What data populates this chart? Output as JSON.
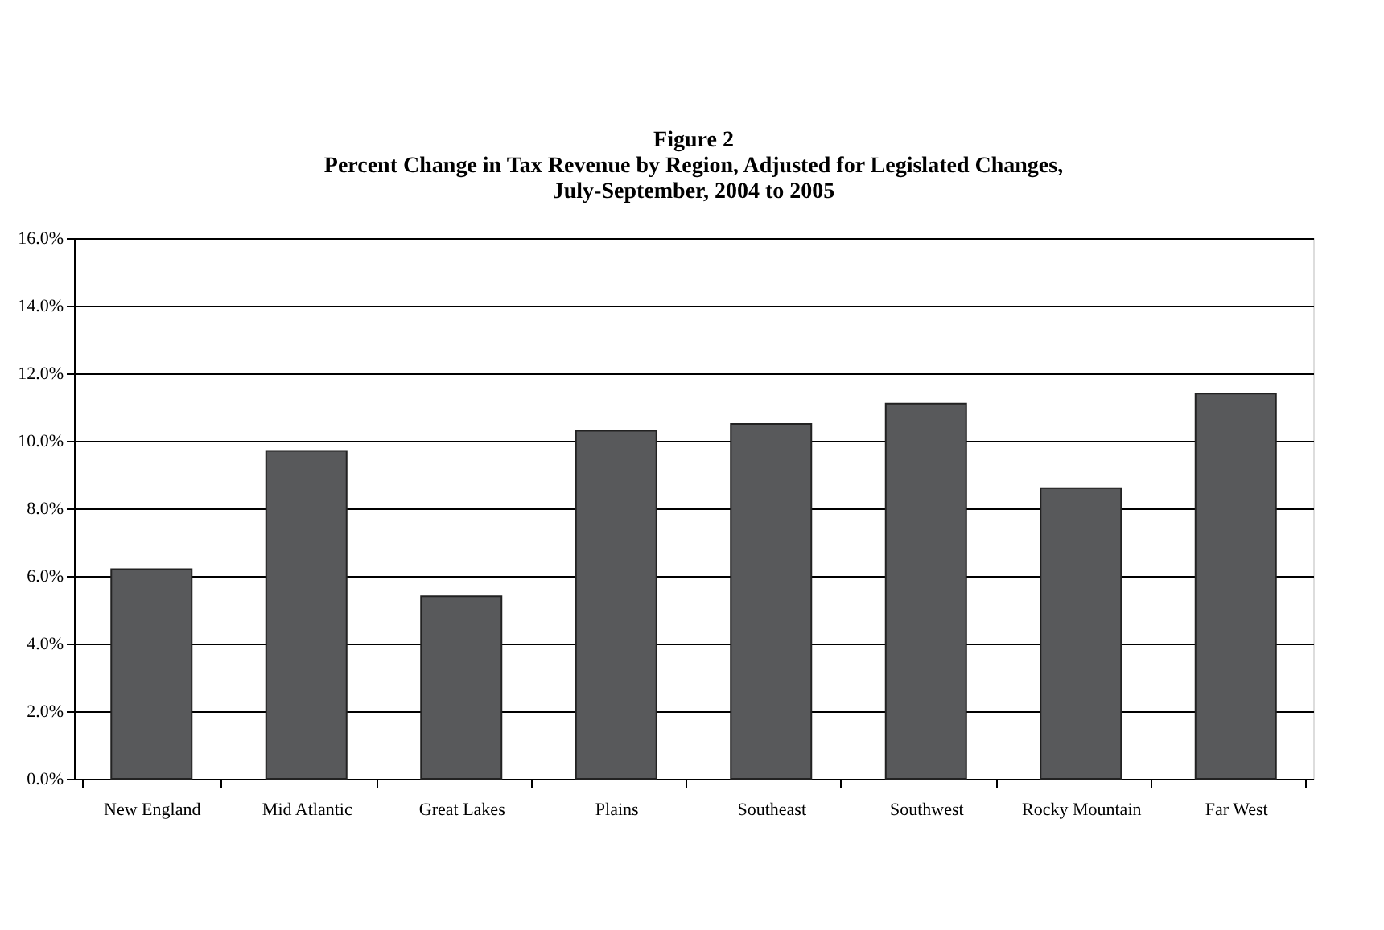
{
  "chart_data": {
    "type": "bar",
    "title": [
      "Figure 2",
      "Percent Change in Tax Revenue by Region, Adjusted for Legislated Changes,",
      "July-September, 2004 to 2005"
    ],
    "categories": [
      "New England",
      "Mid Atlantic",
      "Great Lakes",
      "Plains",
      "Southeast",
      "Southwest",
      "Rocky Mountain",
      "Far West"
    ],
    "values": [
      6.2,
      9.7,
      5.4,
      10.3,
      10.5,
      11.1,
      8.6,
      11.4
    ],
    "color": "#58595b",
    "ylim": [
      0,
      16
    ],
    "yticks": [
      {
        "value": 0,
        "label": "0.0%"
      },
      {
        "value": 2,
        "label": "2.0%"
      },
      {
        "value": 4,
        "label": "4.0%"
      },
      {
        "value": 6,
        "label": "6.0%"
      },
      {
        "value": 8,
        "label": "8.0%"
      },
      {
        "value": 10,
        "label": "10.0%"
      },
      {
        "value": 12,
        "label": "12.0%"
      },
      {
        "value": 14,
        "label": "14.0%"
      },
      {
        "value": 16,
        "label": "16.0%"
      }
    ],
    "grid": "y"
  }
}
